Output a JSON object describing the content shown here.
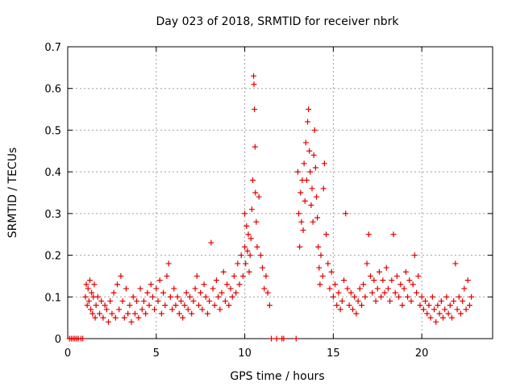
{
  "chart_data": {
    "type": "scatter",
    "title": "Day 023 of 2018, SRMTID for receiver nbrk",
    "xlabel": "GPS time / hours",
    "ylabel": "SRMTID / TECUs",
    "xlim": [
      0,
      24
    ],
    "ylim": [
      0,
      0.7
    ],
    "x_ticks": [
      0,
      5,
      10,
      15,
      20
    ],
    "y_ticks": [
      0,
      0.1,
      0.2,
      0.3,
      0.4,
      0.5,
      0.6,
      0.7
    ],
    "x_tick_labels": [
      "0",
      "5",
      "10",
      "15",
      "20"
    ],
    "y_tick_labels": [
      "0",
      "0.1",
      "0.2",
      "0.3",
      "0.4",
      "0.5",
      "0.6",
      "0.7"
    ],
    "grid": true,
    "marker": "+",
    "color": "#e00000",
    "series": [
      {
        "name": "SRMTID",
        "points": [
          [
            0.1,
            0
          ],
          [
            0.2,
            0
          ],
          [
            0.3,
            0
          ],
          [
            0.4,
            0
          ],
          [
            0.5,
            0
          ],
          [
            0.6,
            0
          ],
          [
            0.75,
            0
          ],
          [
            0.85,
            0
          ],
          [
            1.0,
            0.1
          ],
          [
            1.05,
            0.13
          ],
          [
            1.1,
            0.08
          ],
          [
            1.15,
            0.12
          ],
          [
            1.2,
            0.09
          ],
          [
            1.25,
            0.14
          ],
          [
            1.3,
            0.07
          ],
          [
            1.35,
            0.11
          ],
          [
            1.4,
            0.06
          ],
          [
            1.45,
            0.1
          ],
          [
            1.5,
            0.13
          ],
          [
            1.55,
            0.05
          ],
          [
            1.6,
            0.08
          ],
          [
            1.7,
            0.1
          ],
          [
            1.8,
            0.06
          ],
          [
            1.9,
            0.09
          ],
          [
            2.0,
            0.05
          ],
          [
            2.1,
            0.08
          ],
          [
            2.2,
            0.07
          ],
          [
            2.3,
            0.04
          ],
          [
            2.4,
            0.09
          ],
          [
            2.5,
            0.06
          ],
          [
            2.6,
            0.11
          ],
          [
            2.7,
            0.05
          ],
          [
            2.8,
            0.13
          ],
          [
            2.9,
            0.07
          ],
          [
            3.0,
            0.15
          ],
          [
            3.1,
            0.09
          ],
          [
            3.2,
            0.05
          ],
          [
            3.3,
            0.12
          ],
          [
            3.4,
            0.06
          ],
          [
            3.5,
            0.08
          ],
          [
            3.6,
            0.04
          ],
          [
            3.7,
            0.1
          ],
          [
            3.8,
            0.06
          ],
          [
            3.9,
            0.09
          ],
          [
            4.0,
            0.05
          ],
          [
            4.1,
            0.12
          ],
          [
            4.2,
            0.07
          ],
          [
            4.3,
            0.09
          ],
          [
            4.4,
            0.06
          ],
          [
            4.5,
            0.11
          ],
          [
            4.6,
            0.08
          ],
          [
            4.7,
            0.13
          ],
          [
            4.8,
            0.1
          ],
          [
            4.9,
            0.07
          ],
          [
            5.0,
            0.12
          ],
          [
            5.1,
            0.09
          ],
          [
            5.2,
            0.14
          ],
          [
            5.3,
            0.06
          ],
          [
            5.4,
            0.11
          ],
          [
            5.5,
            0.08
          ],
          [
            5.6,
            0.15
          ],
          [
            5.7,
            0.18
          ],
          [
            5.8,
            0.1
          ],
          [
            5.9,
            0.07
          ],
          [
            6.0,
            0.12
          ],
          [
            6.1,
            0.08
          ],
          [
            6.2,
            0.1
          ],
          [
            6.3,
            0.06
          ],
          [
            6.4,
            0.09
          ],
          [
            6.5,
            0.05
          ],
          [
            6.6,
            0.08
          ],
          [
            6.7,
            0.11
          ],
          [
            6.8,
            0.07
          ],
          [
            6.9,
            0.1
          ],
          [
            7.0,
            0.06
          ],
          [
            7.1,
            0.09
          ],
          [
            7.2,
            0.12
          ],
          [
            7.3,
            0.15
          ],
          [
            7.4,
            0.08
          ],
          [
            7.5,
            0.11
          ],
          [
            7.6,
            0.07
          ],
          [
            7.7,
            0.13
          ],
          [
            7.8,
            0.1
          ],
          [
            7.9,
            0.06
          ],
          [
            8.0,
            0.09
          ],
          [
            8.1,
            0.23
          ],
          [
            8.2,
            0.12
          ],
          [
            8.3,
            0.08
          ],
          [
            8.4,
            0.14
          ],
          [
            8.5,
            0.1
          ],
          [
            8.6,
            0.07
          ],
          [
            8.7,
            0.11
          ],
          [
            8.8,
            0.16
          ],
          [
            8.9,
            0.09
          ],
          [
            9.0,
            0.13
          ],
          [
            9.1,
            0.08
          ],
          [
            9.2,
            0.12
          ],
          [
            9.3,
            0.1
          ],
          [
            9.4,
            0.15
          ],
          [
            9.5,
            0.11
          ],
          [
            9.6,
            0.18
          ],
          [
            9.7,
            0.13
          ],
          [
            9.8,
            0.2
          ],
          [
            9.9,
            0.15
          ],
          [
            10.0,
            0.22
          ],
          [
            10.0,
            0.3
          ],
          [
            10.05,
            0.18
          ],
          [
            10.1,
            0.27
          ],
          [
            10.15,
            0.21
          ],
          [
            10.2,
            0.25
          ],
          [
            10.25,
            0.16
          ],
          [
            10.3,
            0.2
          ],
          [
            10.35,
            0.24
          ],
          [
            10.4,
            0.31
          ],
          [
            10.45,
            0.38
          ],
          [
            10.5,
            0.63
          ],
          [
            10.52,
            0.61
          ],
          [
            10.55,
            0.55
          ],
          [
            10.58,
            0.46
          ],
          [
            10.6,
            0.35
          ],
          [
            10.65,
            0.28
          ],
          [
            10.7,
            0.22
          ],
          [
            10.8,
            0.34
          ],
          [
            10.9,
            0.2
          ],
          [
            11.0,
            0.17
          ],
          [
            11.1,
            0.12
          ],
          [
            11.2,
            0.15
          ],
          [
            11.3,
            0.11
          ],
          [
            11.4,
            0.08
          ],
          [
            11.5,
            0.0
          ],
          [
            11.8,
            0.0
          ],
          [
            12.1,
            0.0
          ],
          [
            12.2,
            0.0
          ],
          [
            12.9,
            0.0
          ],
          [
            13.0,
            0.4
          ],
          [
            13.05,
            0.3
          ],
          [
            13.1,
            0.22
          ],
          [
            13.15,
            0.35
          ],
          [
            13.2,
            0.28
          ],
          [
            13.25,
            0.38
          ],
          [
            13.3,
            0.26
          ],
          [
            13.35,
            0.42
          ],
          [
            13.4,
            0.33
          ],
          [
            13.45,
            0.47
          ],
          [
            13.5,
            0.38
          ],
          [
            13.55,
            0.52
          ],
          [
            13.6,
            0.55
          ],
          [
            13.65,
            0.45
          ],
          [
            13.7,
            0.4
          ],
          [
            13.75,
            0.32
          ],
          [
            13.8,
            0.36
          ],
          [
            13.85,
            0.28
          ],
          [
            13.9,
            0.44
          ],
          [
            13.95,
            0.5
          ],
          [
            14.0,
            0.41
          ],
          [
            14.05,
            0.34
          ],
          [
            14.1,
            0.29
          ],
          [
            14.15,
            0.22
          ],
          [
            14.2,
            0.17
          ],
          [
            14.25,
            0.13
          ],
          [
            14.3,
            0.2
          ],
          [
            14.4,
            0.15
          ],
          [
            14.45,
            0.36
          ],
          [
            14.5,
            0.42
          ],
          [
            14.6,
            0.25
          ],
          [
            14.7,
            0.18
          ],
          [
            14.8,
            0.12
          ],
          [
            14.9,
            0.16
          ],
          [
            15.0,
            0.1
          ],
          [
            15.1,
            0.13
          ],
          [
            15.2,
            0.08
          ],
          [
            15.3,
            0.11
          ],
          [
            15.4,
            0.07
          ],
          [
            15.5,
            0.09
          ],
          [
            15.6,
            0.14
          ],
          [
            15.7,
            0.3
          ],
          [
            15.8,
            0.12
          ],
          [
            15.9,
            0.08
          ],
          [
            16.0,
            0.11
          ],
          [
            16.1,
            0.07
          ],
          [
            16.2,
            0.1
          ],
          [
            16.3,
            0.06
          ],
          [
            16.4,
            0.09
          ],
          [
            16.5,
            0.12
          ],
          [
            16.6,
            0.08
          ],
          [
            16.7,
            0.13
          ],
          [
            16.8,
            0.1
          ],
          [
            16.9,
            0.18
          ],
          [
            17.0,
            0.25
          ],
          [
            17.1,
            0.15
          ],
          [
            17.2,
            0.11
          ],
          [
            17.3,
            0.14
          ],
          [
            17.4,
            0.09
          ],
          [
            17.5,
            0.12
          ],
          [
            17.6,
            0.16
          ],
          [
            17.7,
            0.1
          ],
          [
            17.8,
            0.14
          ],
          [
            17.9,
            0.11
          ],
          [
            18.0,
            0.17
          ],
          [
            18.1,
            0.12
          ],
          [
            18.2,
            0.09
          ],
          [
            18.3,
            0.14
          ],
          [
            18.4,
            0.25
          ],
          [
            18.5,
            0.11
          ],
          [
            18.6,
            0.15
          ],
          [
            18.7,
            0.1
          ],
          [
            18.8,
            0.13
          ],
          [
            18.9,
            0.08
          ],
          [
            19.0,
            0.12
          ],
          [
            19.1,
            0.16
          ],
          [
            19.2,
            0.1
          ],
          [
            19.3,
            0.14
          ],
          [
            19.4,
            0.09
          ],
          [
            19.5,
            0.13
          ],
          [
            19.6,
            0.2
          ],
          [
            19.7,
            0.11
          ],
          [
            19.8,
            0.15
          ],
          [
            19.9,
            0.08
          ],
          [
            20.0,
            0.1
          ],
          [
            20.1,
            0.07
          ],
          [
            20.2,
            0.09
          ],
          [
            20.3,
            0.06
          ],
          [
            20.4,
            0.08
          ],
          [
            20.5,
            0.05
          ],
          [
            20.6,
            0.1
          ],
          [
            20.7,
            0.07
          ],
          [
            20.8,
            0.04
          ],
          [
            20.9,
            0.08
          ],
          [
            21.0,
            0.06
          ],
          [
            21.1,
            0.09
          ],
          [
            21.2,
            0.05
          ],
          [
            21.3,
            0.07
          ],
          [
            21.4,
            0.1
          ],
          [
            21.5,
            0.06
          ],
          [
            21.6,
            0.08
          ],
          [
            21.7,
            0.05
          ],
          [
            21.8,
            0.09
          ],
          [
            21.9,
            0.18
          ],
          [
            22.0,
            0.07
          ],
          [
            22.1,
            0.1
          ],
          [
            22.2,
            0.06
          ],
          [
            22.3,
            0.09
          ],
          [
            22.4,
            0.12
          ],
          [
            22.5,
            0.07
          ],
          [
            22.6,
            0.14
          ],
          [
            22.7,
            0.08
          ],
          [
            22.8,
            0.1
          ]
        ]
      }
    ]
  }
}
